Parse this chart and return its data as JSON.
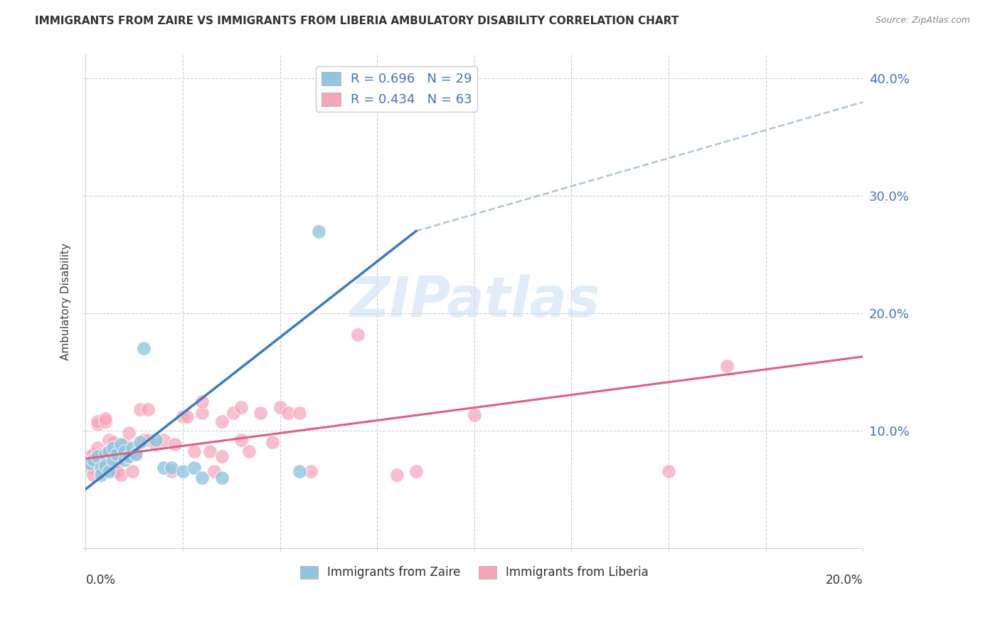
{
  "title": "IMMIGRANTS FROM ZAIRE VS IMMIGRANTS FROM LIBERIA AMBULATORY DISABILITY CORRELATION CHART",
  "source": "Source: ZipAtlas.com",
  "ylabel": "Ambulatory Disability",
  "xlim": [
    0.0,
    0.2
  ],
  "ylim": [
    0.0,
    0.42
  ],
  "color_zaire": "#92c5de",
  "color_liberia": "#f4a5b8",
  "line_color_zaire": "#3a7abf",
  "line_color_liberia": "#e06080",
  "dashed_line_color": "#b0c4de",
  "watermark": "ZIPatlas",
  "zaire_points": [
    [
      0.001,
      0.072
    ],
    [
      0.002,
      0.075
    ],
    [
      0.003,
      0.078
    ],
    [
      0.004,
      0.068
    ],
    [
      0.004,
      0.062
    ],
    [
      0.005,
      0.08
    ],
    [
      0.005,
      0.07
    ],
    [
      0.006,
      0.082
    ],
    [
      0.006,
      0.065
    ],
    [
      0.007,
      0.085
    ],
    [
      0.007,
      0.075
    ],
    [
      0.008,
      0.08
    ],
    [
      0.009,
      0.088
    ],
    [
      0.01,
      0.082
    ],
    [
      0.01,
      0.075
    ],
    [
      0.011,
      0.078
    ],
    [
      0.012,
      0.085
    ],
    [
      0.013,
      0.08
    ],
    [
      0.014,
      0.09
    ],
    [
      0.015,
      0.17
    ],
    [
      0.018,
      0.092
    ],
    [
      0.02,
      0.068
    ],
    [
      0.022,
      0.068
    ],
    [
      0.025,
      0.065
    ],
    [
      0.028,
      0.068
    ],
    [
      0.03,
      0.06
    ],
    [
      0.035,
      0.06
    ],
    [
      0.055,
      0.065
    ],
    [
      0.06,
      0.27
    ]
  ],
  "liberia_points": [
    [
      0.001,
      0.072
    ],
    [
      0.001,
      0.068
    ],
    [
      0.001,
      0.078
    ],
    [
      0.002,
      0.075
    ],
    [
      0.002,
      0.08
    ],
    [
      0.002,
      0.068
    ],
    [
      0.002,
      0.062
    ],
    [
      0.003,
      0.072
    ],
    [
      0.003,
      0.085
    ],
    [
      0.003,
      0.105
    ],
    [
      0.003,
      0.108
    ],
    [
      0.004,
      0.065
    ],
    [
      0.004,
      0.08
    ],
    [
      0.005,
      0.072
    ],
    [
      0.005,
      0.108
    ],
    [
      0.005,
      0.11
    ],
    [
      0.006,
      0.082
    ],
    [
      0.006,
      0.092
    ],
    [
      0.007,
      0.09
    ],
    [
      0.007,
      0.072
    ],
    [
      0.007,
      0.065
    ],
    [
      0.008,
      0.08
    ],
    [
      0.008,
      0.07
    ],
    [
      0.008,
      0.065
    ],
    [
      0.009,
      0.062
    ],
    [
      0.01,
      0.088
    ],
    [
      0.01,
      0.082
    ],
    [
      0.011,
      0.098
    ],
    [
      0.012,
      0.065
    ],
    [
      0.013,
      0.08
    ],
    [
      0.014,
      0.118
    ],
    [
      0.015,
      0.092
    ],
    [
      0.016,
      0.118
    ],
    [
      0.016,
      0.092
    ],
    [
      0.018,
      0.088
    ],
    [
      0.02,
      0.092
    ],
    [
      0.022,
      0.065
    ],
    [
      0.023,
      0.088
    ],
    [
      0.025,
      0.112
    ],
    [
      0.026,
      0.112
    ],
    [
      0.028,
      0.082
    ],
    [
      0.03,
      0.115
    ],
    [
      0.03,
      0.125
    ],
    [
      0.032,
      0.082
    ],
    [
      0.033,
      0.065
    ],
    [
      0.035,
      0.108
    ],
    [
      0.035,
      0.078
    ],
    [
      0.038,
      0.115
    ],
    [
      0.04,
      0.092
    ],
    [
      0.04,
      0.12
    ],
    [
      0.042,
      0.082
    ],
    [
      0.045,
      0.115
    ],
    [
      0.048,
      0.09
    ],
    [
      0.05,
      0.12
    ],
    [
      0.052,
      0.115
    ],
    [
      0.055,
      0.115
    ],
    [
      0.058,
      0.065
    ],
    [
      0.07,
      0.182
    ],
    [
      0.08,
      0.062
    ],
    [
      0.085,
      0.065
    ],
    [
      0.1,
      0.113
    ],
    [
      0.15,
      0.065
    ],
    [
      0.165,
      0.155
    ]
  ],
  "zaire_line_solid": [
    [
      0.0,
      0.05
    ],
    [
      0.085,
      0.27
    ]
  ],
  "zaire_line_dashed": [
    [
      0.085,
      0.27
    ],
    [
      0.2,
      0.38
    ]
  ],
  "liberia_line": [
    [
      0.0,
      0.076
    ],
    [
      0.2,
      0.163
    ]
  ]
}
